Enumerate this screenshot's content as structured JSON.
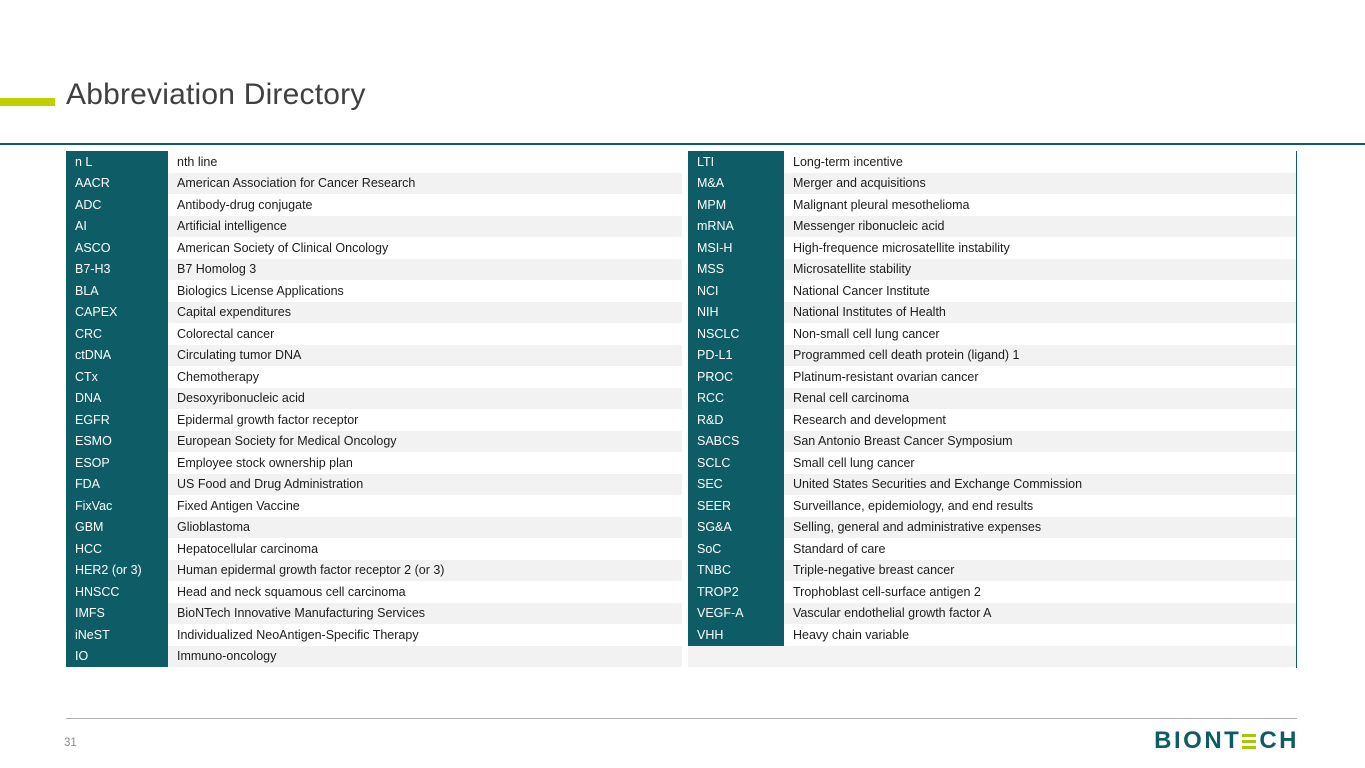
{
  "slide": {
    "title": "Abbreviation Directory",
    "page_number": "31",
    "logo": {
      "prefix": "BIONT",
      "suffix": "CH"
    }
  },
  "colors": {
    "brand_teal": "#0d5c66",
    "accent_green": "#bdd000",
    "row_alt_gray": "#f2f2f2"
  },
  "table": {
    "left": [
      {
        "abbr": "n L",
        "definition": "nth line"
      },
      {
        "abbr": "AACR",
        "definition": "American Association for Cancer Research"
      },
      {
        "abbr": "ADC",
        "definition": "Antibody-drug conjugate"
      },
      {
        "abbr": "AI",
        "definition": "Artificial intelligence"
      },
      {
        "abbr": "ASCO",
        "definition": "American Society of Clinical Oncology"
      },
      {
        "abbr": "B7-H3",
        "definition": "B7 Homolog 3"
      },
      {
        "abbr": "BLA",
        "definition": "Biologics License Applications"
      },
      {
        "abbr": "CAPEX",
        "definition": "Capital expenditures"
      },
      {
        "abbr": "CRC",
        "definition": "Colorectal cancer"
      },
      {
        "abbr": "ctDNA",
        "definition": "Circulating tumor DNA"
      },
      {
        "abbr": "CTx",
        "definition": "Chemotherapy"
      },
      {
        "abbr": "DNA",
        "definition": "Desoxyribonucleic acid"
      },
      {
        "abbr": "EGFR",
        "definition": "Epidermal growth factor receptor"
      },
      {
        "abbr": "ESMO",
        "definition": "European Society for Medical Oncology"
      },
      {
        "abbr": "ESOP",
        "definition": "Employee stock ownership plan"
      },
      {
        "abbr": "FDA",
        "definition": "US Food and Drug Administration"
      },
      {
        "abbr": "FixVac",
        "definition": "Fixed Antigen Vaccine"
      },
      {
        "abbr": "GBM",
        "definition": "Glioblastoma"
      },
      {
        "abbr": "HCC",
        "definition": "Hepatocellular carcinoma"
      },
      {
        "abbr": "HER2 (or 3)",
        "definition": "Human epidermal growth factor receptor 2 (or 3)"
      },
      {
        "abbr": "HNSCC",
        "definition": "Head and neck squamous cell carcinoma"
      },
      {
        "abbr": "IMFS",
        "definition": "BioNTech Innovative Manufacturing Services"
      },
      {
        "abbr": "iNeST",
        "definition": "Individualized NeoAntigen-Specific Therapy"
      },
      {
        "abbr": "IO",
        "definition": "Immuno-oncology"
      }
    ],
    "right": [
      {
        "abbr": "LTI",
        "definition": "Long-term incentive"
      },
      {
        "abbr": "M&A",
        "definition": "Merger and acquisitions"
      },
      {
        "abbr": "MPM",
        "definition": "Malignant pleural mesothelioma"
      },
      {
        "abbr": "mRNA",
        "definition": "Messenger ribonucleic acid"
      },
      {
        "abbr": "MSI-H",
        "definition": "High-frequence microsatellite instability"
      },
      {
        "abbr": "MSS",
        "definition": "Microsatellite stability"
      },
      {
        "abbr": "NCI",
        "definition": "National Cancer Institute"
      },
      {
        "abbr": "NIH",
        "definition": "National Institutes of Health"
      },
      {
        "abbr": "NSCLC",
        "definition": "Non-small cell lung cancer"
      },
      {
        "abbr": "PD-L1",
        "definition": "Programmed cell death protein (ligand) 1"
      },
      {
        "abbr": "PROC",
        "definition": "Platinum-resistant ovarian cancer"
      },
      {
        "abbr": "RCC",
        "definition": "Renal cell carcinoma"
      },
      {
        "abbr": "R&D",
        "definition": "Research and development"
      },
      {
        "abbr": "SABCS",
        "definition": "San Antonio Breast Cancer Symposium"
      },
      {
        "abbr": "SCLC",
        "definition": "Small cell lung cancer"
      },
      {
        "abbr": "SEC",
        "definition": "United States Securities and Exchange Commission"
      },
      {
        "abbr": "SEER",
        "definition": "Surveillance, epidemiology, and end results"
      },
      {
        "abbr": "SG&A",
        "definition": "Selling, general and administrative expenses"
      },
      {
        "abbr": "SoC",
        "definition": "Standard of care"
      },
      {
        "abbr": "TNBC",
        "definition": "Triple-negative breast cancer"
      },
      {
        "abbr": "TROP2",
        "definition": "Trophoblast cell-surface antigen 2"
      },
      {
        "abbr": "VEGF-A",
        "definition": "Vascular endothelial growth factor A"
      },
      {
        "abbr": "VHH",
        "definition": "Heavy chain variable"
      }
    ]
  }
}
